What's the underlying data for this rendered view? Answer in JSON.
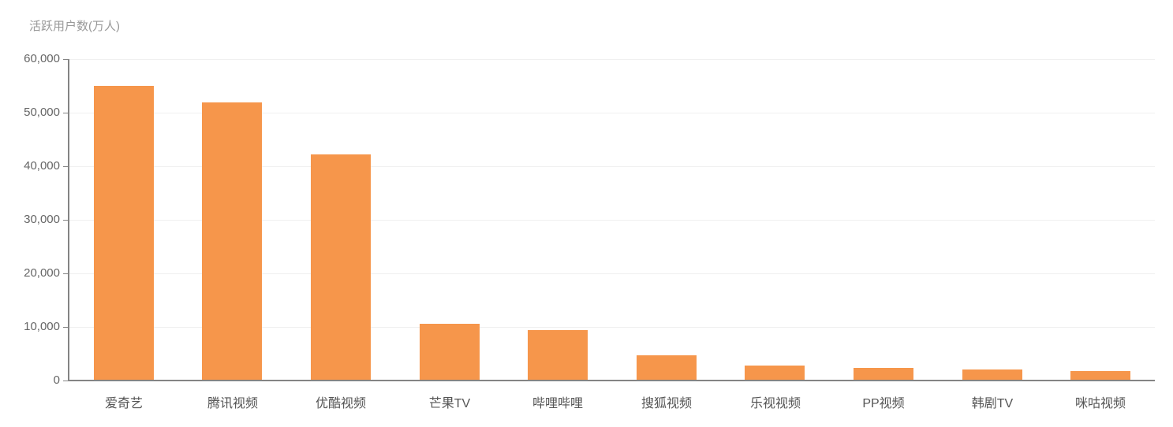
{
  "chart_data": {
    "type": "bar",
    "title": "活跃用户数(万人)",
    "categories": [
      "爱奇艺",
      "腾讯视频",
      "优酷视频",
      "芒果TV",
      "哔哩哔哩",
      "搜狐视频",
      "乐视视频",
      "PP视频",
      "韩剧TV",
      "咪咕视频"
    ],
    "values": [
      54900,
      51800,
      42100,
      10400,
      9200,
      4500,
      2600,
      2200,
      1900,
      1600
    ],
    "series_name": "活跃用户数",
    "xlabel": "",
    "ylabel": "活跃用户数(万人)",
    "ylim": [
      0,
      60000
    ],
    "ytick_interval": 10000,
    "ytick_labels": [
      "0",
      "10,000",
      "20,000",
      "30,000",
      "40,000",
      "50,000",
      "60,000"
    ],
    "grid": "horizontal gridlines on",
    "legend": "none",
    "colors": {
      "bar": "#f6964b",
      "axis": "#848484",
      "gridline": "#f0f0f0",
      "ytick_label": "#666666",
      "category_label": "#555555",
      "title": "#999999",
      "background": "#ffffff"
    }
  }
}
